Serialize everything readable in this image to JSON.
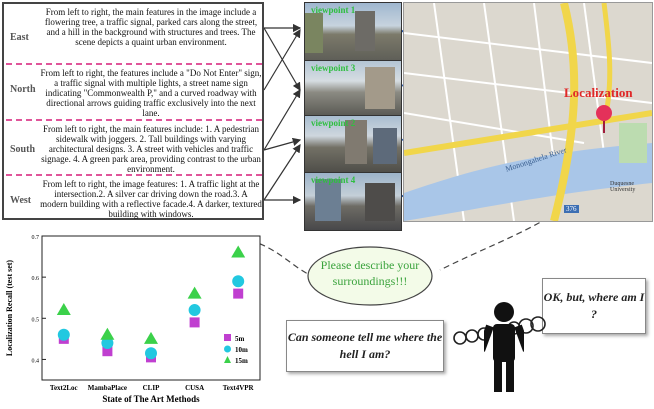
{
  "descriptions": [
    {
      "direction": "East",
      "text": "From left to right, the main features in the image include a flowering tree, a traffic signal, parked cars along the street, and a hill in the background with structures and trees. The scene depicts a quaint urban environment."
    },
    {
      "direction": "North",
      "text": "From left to right, the features include a \"Do Not Enter\" sign, a traffic signal with multiple lights, a street name sign indicating \"Commonwealth P,\" and a curved roadway with directional arrows guiding traffic exclusively into the next lane."
    },
    {
      "direction": "South",
      "text": "From left to right, the main features include: 1. A pedestrian sidewalk with joggers. 2. Tall buildings with varying architectural designs. 3. A street with vehicles and traffic signage. 4. A green park area, providing contrast to the urban environment."
    },
    {
      "direction": "West",
      "text": "From left to right, the image features: 1. A traffic light at the intersection.2. A silver car driving down the road.3. A modern building with a reflective facade.4. A darker, textured building with windows."
    }
  ],
  "viewpoints": [
    "viewpoint 1",
    "viewpoint 3",
    "viewpoint 2",
    "viewpoint 4"
  ],
  "map": {
    "label": "Localization",
    "river_label": "Monongahela River",
    "university_label": "Duquesne University",
    "route_shield": "376"
  },
  "speech": {
    "text": "Please describe your surroundings!!!"
  },
  "questions": {
    "left": "Can someone tell me where the hell I am?",
    "right": "OK, but, where am I ?"
  },
  "chart_data": {
    "type": "scatter",
    "categories": [
      "Text2Loc",
      "MambaPlace",
      "CLIP",
      "CUSA",
      "Text4VPR"
    ],
    "series": [
      {
        "name": "5m",
        "marker": "square",
        "color": "#c03fd0",
        "values": [
          0.45,
          0.42,
          0.405,
          0.49,
          0.56
        ]
      },
      {
        "name": "10m",
        "marker": "circle",
        "color": "#22c8e0",
        "values": [
          0.46,
          0.44,
          0.415,
          0.52,
          0.59
        ]
      },
      {
        "name": "15m",
        "marker": "triangle",
        "color": "#3bd14a",
        "values": [
          0.52,
          0.46,
          0.45,
          0.56,
          0.66
        ]
      }
    ],
    "xlabel": "State of The Art Methods",
    "ylabel": "Localization Recall (test set)",
    "ylim": [
      0.35,
      0.7
    ],
    "yticks": [
      "0.4",
      "0.5",
      "0.6",
      "0.7"
    ]
  }
}
